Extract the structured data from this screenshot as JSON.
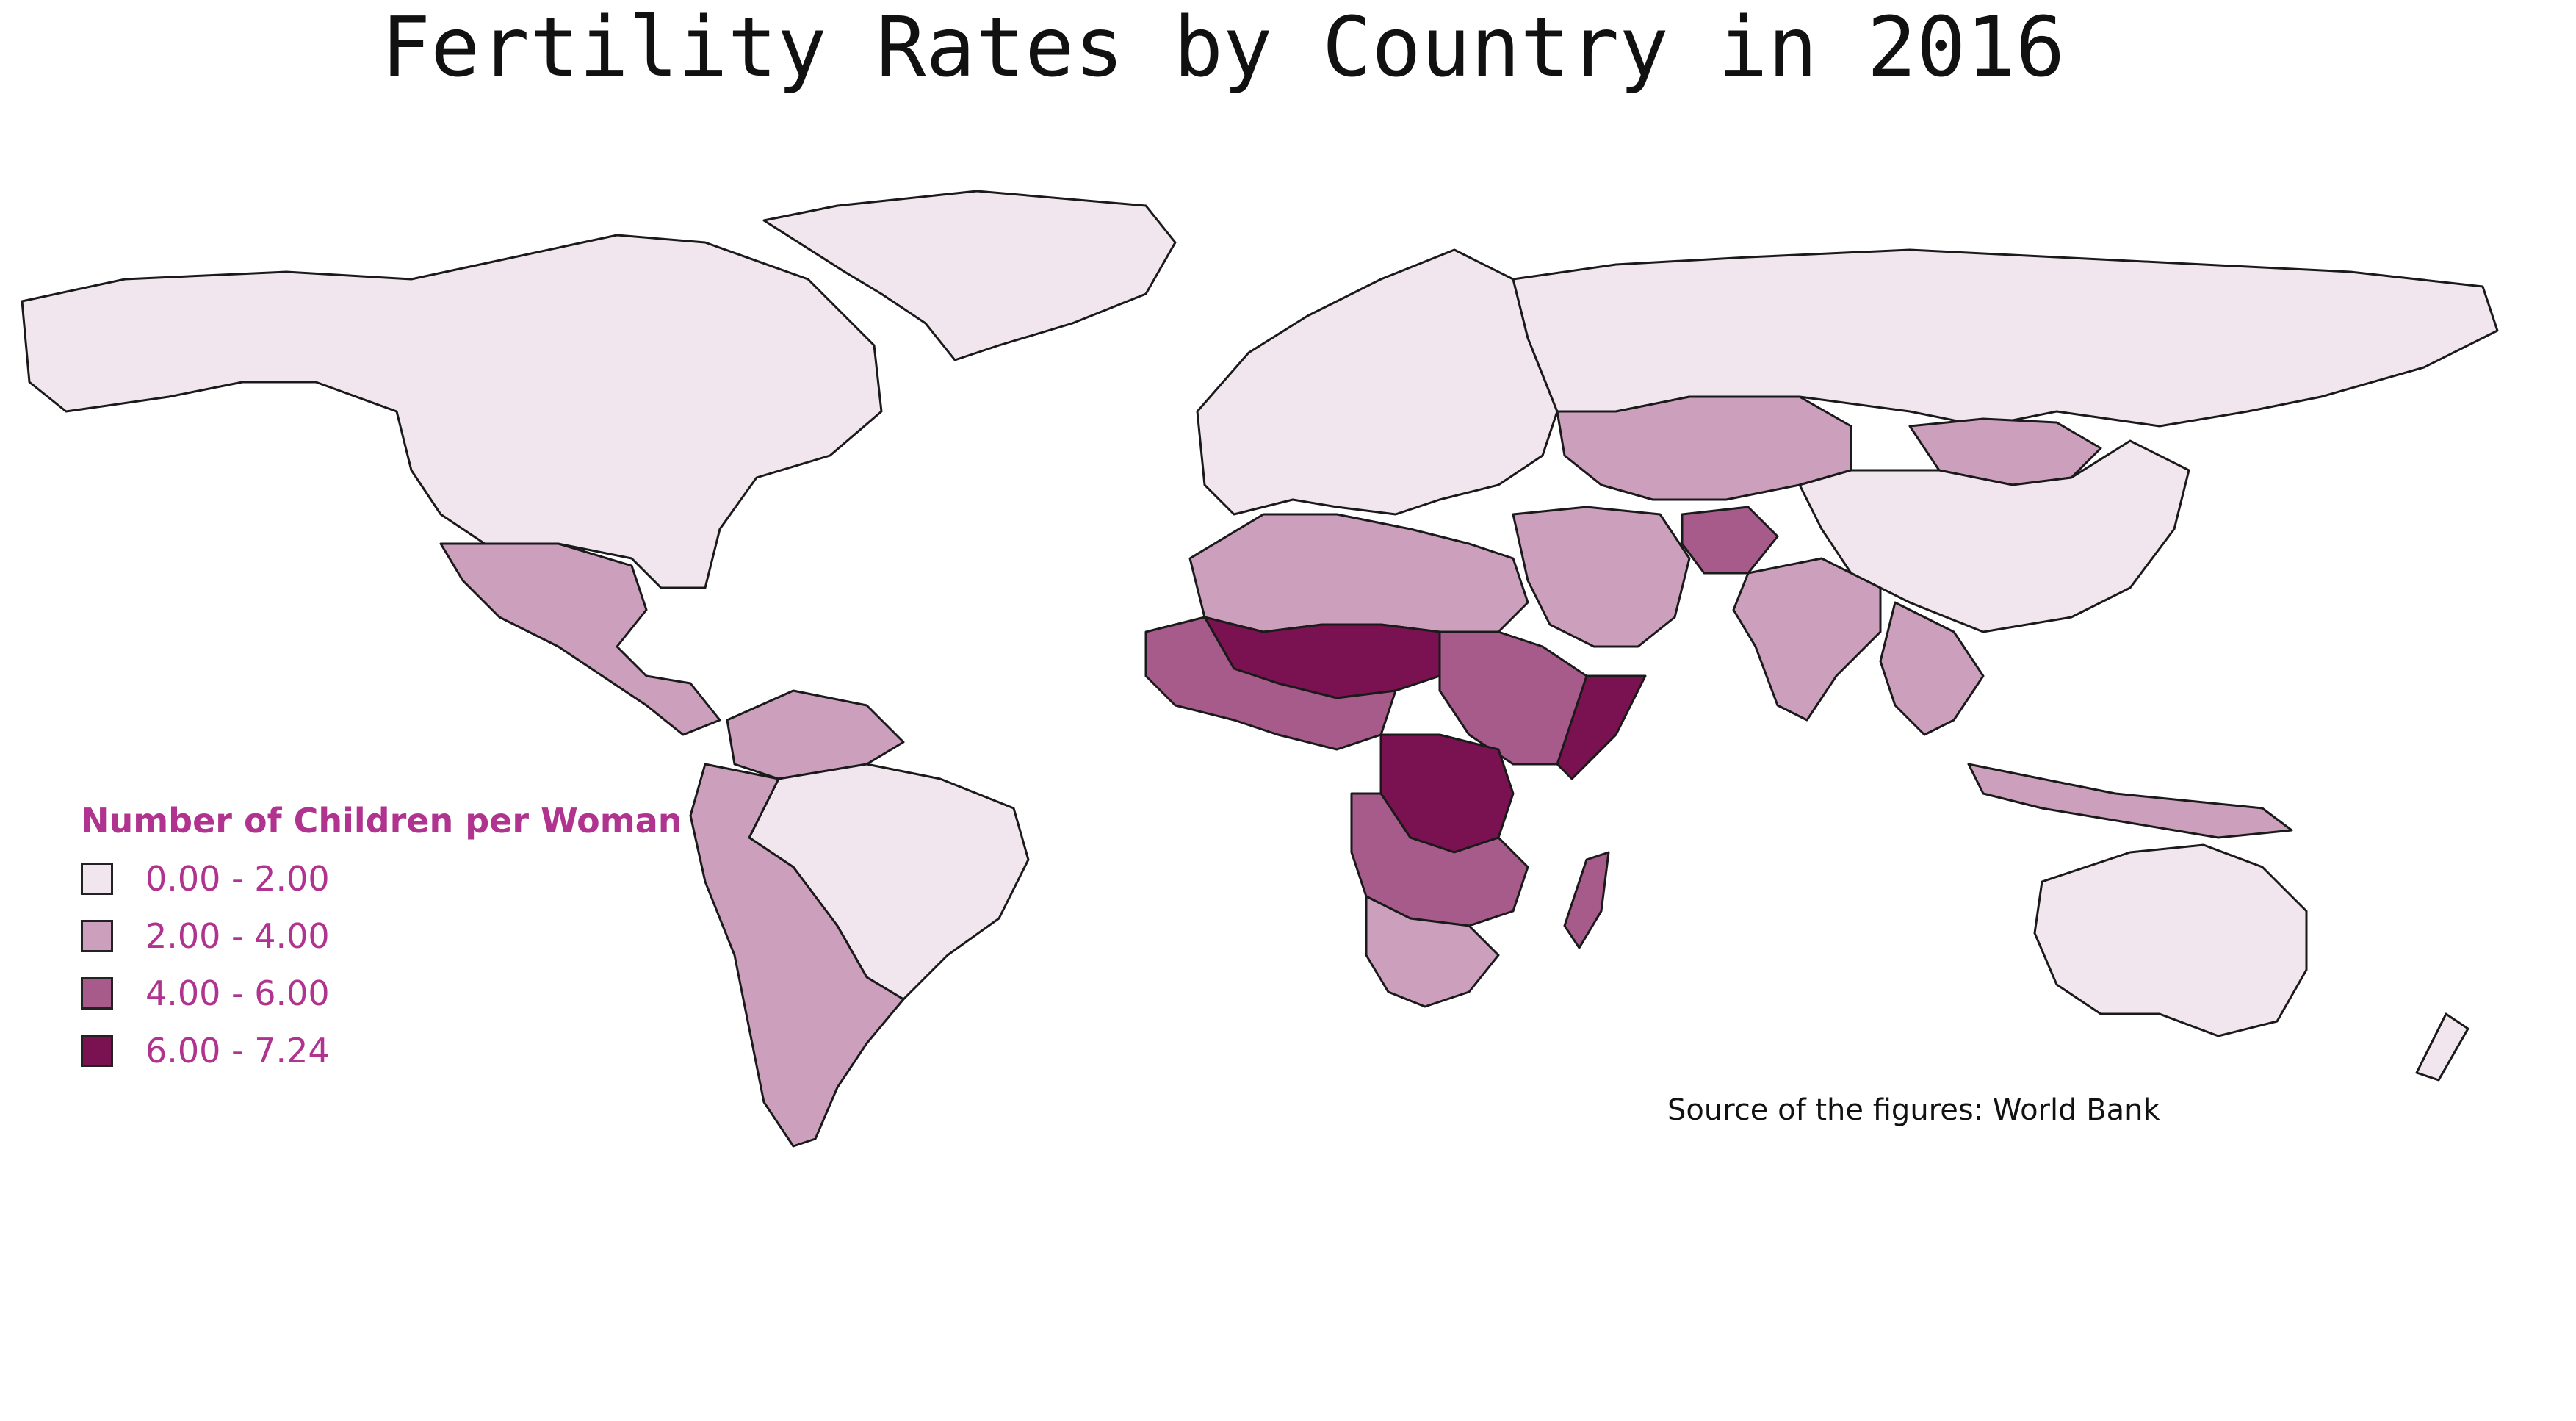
{
  "title": "Fertility Rates by Country in 2016",
  "legend": {
    "title": "Number of Children per Woman",
    "classes": [
      {
        "label": "0.00 - 2.00",
        "color": "#f2e6ee"
      },
      {
        "label": "2.00 - 4.00",
        "color": "#cca0bd"
      },
      {
        "label": "4.00 - 6.00",
        "color": "#a65b8b"
      },
      {
        "label": "6.00 - 7.24",
        "color": "#7a1150"
      }
    ]
  },
  "source": "Source of the figures: World Bank",
  "colors": {
    "outline": "#1a1a1a",
    "ocean": "#ffffff",
    "legend_text": "#b0338f"
  }
}
